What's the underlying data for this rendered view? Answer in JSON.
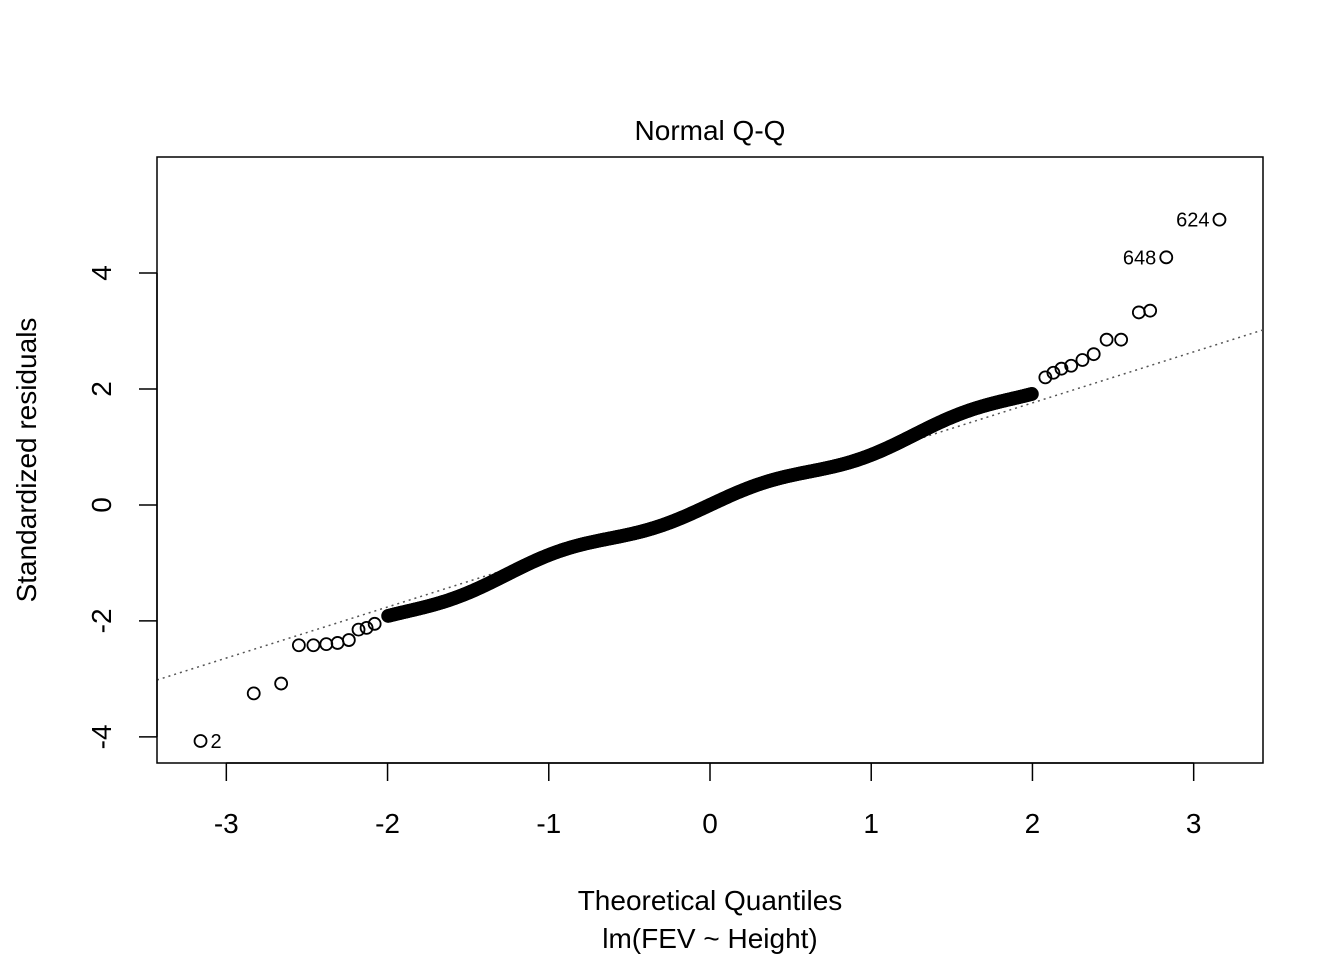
{
  "chart_data": {
    "type": "scatter",
    "title": "Normal Q-Q",
    "xlabel": "Theoretical Quantiles",
    "subtitle": "lm(FEV ~ Height)",
    "ylabel": "Standardized residuals",
    "xlim": [
      -3.43,
      3.43
    ],
    "ylim": [
      -4.45,
      6.0
    ],
    "xticks": [
      "-3",
      "-2",
      "-1",
      "0",
      "1",
      "2",
      "3"
    ],
    "yticks": [
      "-4",
      "-2",
      "0",
      "2",
      "4"
    ],
    "reference_line": {
      "slope": 0.88,
      "intercept": 0.0,
      "style": "dotted"
    },
    "labeled_points": [
      {
        "label": "624",
        "x": 3.16,
        "y": 4.92
      },
      {
        "label": "648",
        "x": 2.83,
        "y": 4.27
      },
      {
        "label": "2",
        "x": -3.16,
        "y": -4.07
      }
    ],
    "tail_points": [
      {
        "x": -2.83,
        "y": -3.25
      },
      {
        "x": -2.66,
        "y": -3.08
      },
      {
        "x": -2.55,
        "y": -2.42
      },
      {
        "x": -2.46,
        "y": -2.42
      },
      {
        "x": -2.38,
        "y": -2.4
      },
      {
        "x": -2.31,
        "y": -2.38
      },
      {
        "x": -2.24,
        "y": -2.33
      },
      {
        "x": -2.18,
        "y": -2.15
      },
      {
        "x": -2.13,
        "y": -2.12
      },
      {
        "x": -2.08,
        "y": -2.05
      },
      {
        "x": 2.08,
        "y": 2.2
      },
      {
        "x": 2.13,
        "y": 2.28
      },
      {
        "x": 2.18,
        "y": 2.35
      },
      {
        "x": 2.24,
        "y": 2.4
      },
      {
        "x": 2.31,
        "y": 2.5
      },
      {
        "x": 2.38,
        "y": 2.6
      },
      {
        "x": 2.46,
        "y": 2.85
      },
      {
        "x": 2.55,
        "y": 2.85
      },
      {
        "x": 2.66,
        "y": 3.32
      },
      {
        "x": 2.73,
        "y": 3.35
      }
    ],
    "central_band": {
      "x_from": -2.0,
      "x_to": 2.0,
      "approx_n": 560
    }
  }
}
